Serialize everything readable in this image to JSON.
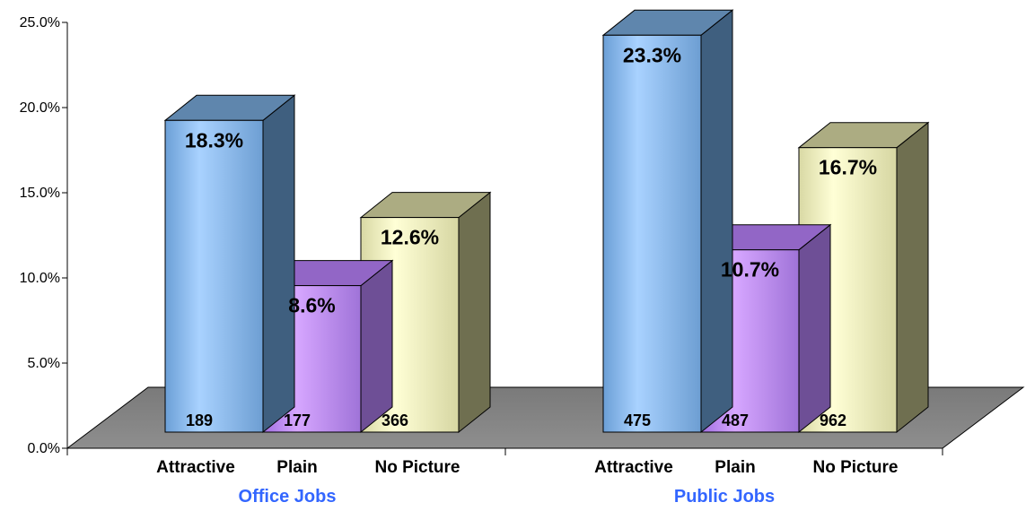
{
  "chart_data": {
    "type": "bar",
    "groups": [
      "Office Jobs",
      "Public Jobs"
    ],
    "categories": [
      "Attractive",
      "Plain",
      "No Picture"
    ],
    "series": [
      {
        "group": "Office Jobs",
        "values": [
          18.3,
          8.6,
          12.6
        ],
        "value_labels": [
          "18.3%",
          "8.6%",
          "12.6%"
        ],
        "counts": [
          "189",
          "177",
          "366"
        ]
      },
      {
        "group": "Public Jobs",
        "values": [
          23.3,
          10.7,
          16.7
        ],
        "value_labels": [
          "23.3%",
          "10.7%",
          "16.7%"
        ],
        "counts": [
          "475",
          "487",
          "962"
        ]
      }
    ],
    "y_ticks": [
      "0.0%",
      "5.0%",
      "10.0%",
      "15.0%",
      "20.0%",
      "25.0%"
    ],
    "ylim": [
      0,
      25
    ],
    "grid": false,
    "legend": "none",
    "three_d": true,
    "colors": {
      "attractive": "#99ccff",
      "plain": "#cc99ff",
      "no_picture": "#ffffcc",
      "floor": "#808080",
      "group_label": "#3366ff"
    }
  }
}
